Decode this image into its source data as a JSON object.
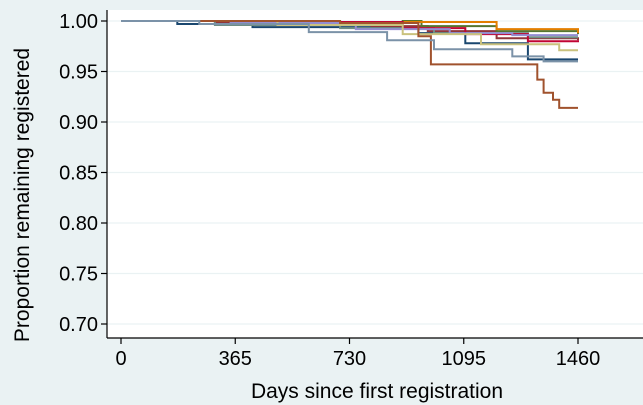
{
  "chart_data": {
    "type": "line",
    "step": true,
    "xlabel": "Days since first registration",
    "ylabel": "Proportion remaining registered",
    "xlim": [
      0,
      1700
    ],
    "ylim": [
      0.695,
      1.004
    ],
    "xticks": [
      0,
      365,
      730,
      1095,
      1460
    ],
    "yticks": [
      0.7,
      0.75,
      0.8,
      0.85,
      0.9,
      0.95,
      1.0
    ],
    "xtick_labels": [
      "0",
      "365",
      "730",
      "1095",
      "1460"
    ],
    "ytick_labels": [
      "0.70",
      "0.75",
      "0.80",
      "0.85",
      "0.90",
      "0.95",
      "1.00"
    ],
    "grid": "horizontal",
    "legend": "none",
    "colors": {
      "background": "#eaf2f3",
      "plot_background": "#ffffff",
      "grid": "#eaf2f3"
    },
    "series": [
      {
        "color": "#1a476f",
        "x": [
          0,
          180,
          420,
          950,
          1100,
          1300,
          1460
        ],
        "y": [
          1.0,
          0.997,
          0.994,
          0.988,
          0.978,
          0.962,
          0.962
        ]
      },
      {
        "color": "#90353b",
        "x": [
          0,
          300,
          800,
          980,
          1200,
          1460
        ],
        "y": [
          1.0,
          0.998,
          0.995,
          0.99,
          0.983,
          0.981
        ]
      },
      {
        "color": "#55752f",
        "x": [
          0,
          400,
          900,
          960,
          1200,
          1460
        ],
        "y": [
          1.0,
          0.999,
          1.0,
          0.995,
          0.99,
          0.987
        ]
      },
      {
        "color": "#e37e00",
        "x": [
          0,
          560,
          1000,
          1200,
          1460
        ],
        "y": [
          1.0,
          0.999,
          0.999,
          0.992,
          0.988
        ]
      },
      {
        "color": "#6e8e84",
        "x": [
          0,
          300,
          700,
          1000,
          1300,
          1460
        ],
        "y": [
          1.0,
          0.996,
          0.993,
          0.988,
          0.984,
          0.984
        ]
      },
      {
        "color": "#c10534",
        "x": [
          0,
          500,
          900,
          1100,
          1300,
          1460
        ],
        "y": [
          1.0,
          0.999,
          0.993,
          0.987,
          0.98,
          0.979
        ]
      },
      {
        "color": "#938dd2",
        "x": [
          0,
          350,
          750,
          1050,
          1250,
          1460
        ],
        "y": [
          1.0,
          0.998,
          0.992,
          0.988,
          0.986,
          0.986
        ]
      },
      {
        "color": "#cac27e",
        "x": [
          0,
          500,
          900,
          1150,
          1400,
          1460
        ],
        "y": [
          1.0,
          0.996,
          0.987,
          0.977,
          0.971,
          0.971
        ]
      },
      {
        "color": "#a0522d",
        "x": [
          0,
          700,
          950,
          990,
          1330,
          1350,
          1380,
          1400,
          1460
        ],
        "y": [
          1.0,
          0.998,
          0.985,
          0.957,
          0.942,
          0.929,
          0.922,
          0.914,
          0.914
        ]
      },
      {
        "color": "#7b92a8",
        "x": [
          0,
          250,
          600,
          850,
          1000,
          1250,
          1350,
          1460
        ],
        "y": [
          1.0,
          0.997,
          0.989,
          0.981,
          0.972,
          0.965,
          0.96,
          0.96
        ]
      }
    ]
  }
}
